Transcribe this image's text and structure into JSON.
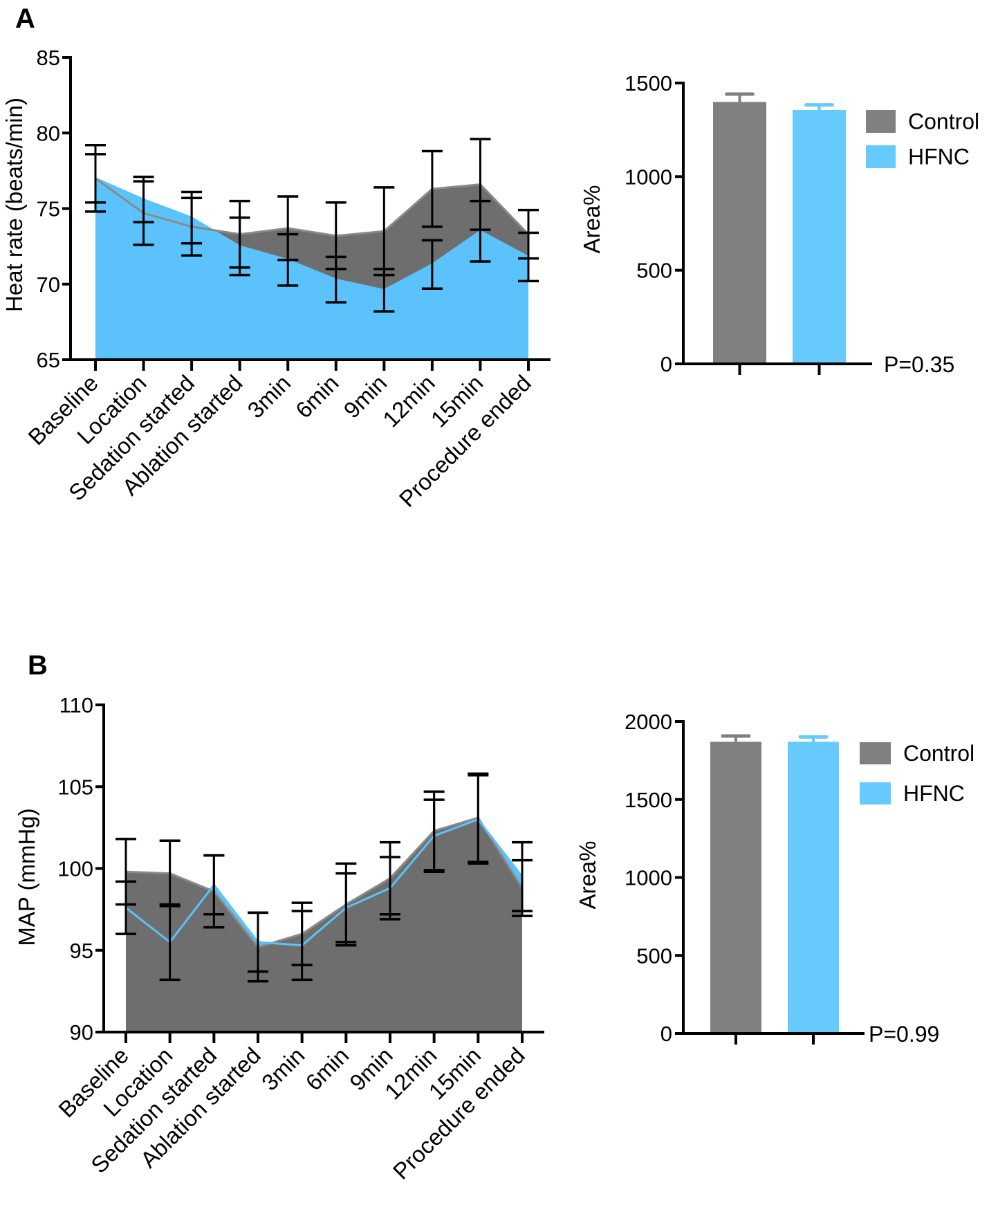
{
  "colors": {
    "Control": "#6e6e6e",
    "Control_bar": "#808080",
    "HFNC": "#5bc2fb",
    "HFNC_bar": "#66cbfc"
  },
  "chart_data": [
    {
      "panel": "A",
      "type": "area",
      "ylabel": "Heat rate (beats/min)",
      "ylim": [
        65,
        85
      ],
      "yticks": [
        "65",
        "70",
        "75",
        "80",
        "85"
      ],
      "categories": [
        "Baseline",
        "Location",
        "Sedation started",
        "Ablation started",
        "3min",
        "6min",
        "9min",
        "12min",
        "15min",
        "Procedure ended"
      ],
      "series": [
        {
          "name": "Control",
          "values": [
            77.0,
            74.7,
            73.8,
            73.3,
            73.7,
            73.2,
            73.5,
            76.3,
            76.6,
            73.3
          ],
          "error": [
            1.6,
            2.1,
            1.9,
            2.2,
            2.1,
            2.2,
            2.9,
            2.5,
            3.0,
            1.6
          ]
        },
        {
          "name": "HFNC",
          "values": [
            77.0,
            75.6,
            74.4,
            72.5,
            71.6,
            70.3,
            69.6,
            71.3,
            73.5,
            71.8
          ],
          "error": [
            2.2,
            1.5,
            1.7,
            1.9,
            1.7,
            1.5,
            1.4,
            1.6,
            2.0,
            1.6
          ]
        }
      ],
      "grid": false
    },
    {
      "panel": "A",
      "type": "bar",
      "ylabel": "Area%",
      "ylim": [
        0,
        1500
      ],
      "yticks": [
        "0",
        "500",
        "1000",
        "1500"
      ],
      "categories": [
        "Control",
        "HFNC"
      ],
      "values": [
        1399,
        1356
      ],
      "error": [
        42,
        27
      ],
      "legend": [
        "Control",
        "HFNC"
      ],
      "legend_position": "top-right",
      "annotation": "P=0.35"
    },
    {
      "panel": "B",
      "type": "area",
      "ylabel": "MAP (mmHg)",
      "ylim": [
        90,
        110
      ],
      "yticks": [
        "90",
        "95",
        "100",
        "105",
        "110"
      ],
      "categories": [
        "Baseline",
        "Location",
        "Sedation started",
        "Ablation started",
        "3min",
        "6min",
        "9min",
        "12min",
        "15min",
        "Procedure ended"
      ],
      "series": [
        {
          "name": "Control",
          "values": [
            99.8,
            99.7,
            98.6,
            95.2,
            96.0,
            97.8,
            99.4,
            102.3,
            103.1,
            98.8
          ],
          "error": [
            2.0,
            2.0,
            2.2,
            2.1,
            1.9,
            2.5,
            2.2,
            2.4,
            2.7,
            1.7
          ]
        },
        {
          "name": "HFNC",
          "values": [
            97.6,
            95.5,
            99.0,
            95.5,
            95.3,
            97.6,
            98.8,
            102.0,
            103.0,
            99.5
          ],
          "error": [
            1.6,
            2.3,
            1.8,
            1.8,
            2.1,
            2.1,
            1.9,
            2.2,
            2.7,
            2.1
          ]
        }
      ],
      "grid": false
    },
    {
      "panel": "B",
      "type": "bar",
      "ylabel": "Area%",
      "ylim": [
        0,
        2000
      ],
      "yticks": [
        "0",
        "500",
        "1000",
        "1500",
        "2000"
      ],
      "categories": [
        "Control",
        "HFNC"
      ],
      "values": [
        1870,
        1870
      ],
      "error": [
        37,
        31
      ],
      "legend": [
        "Control",
        "HFNC"
      ],
      "legend_position": "top-right",
      "annotation": "P=0.99"
    }
  ]
}
